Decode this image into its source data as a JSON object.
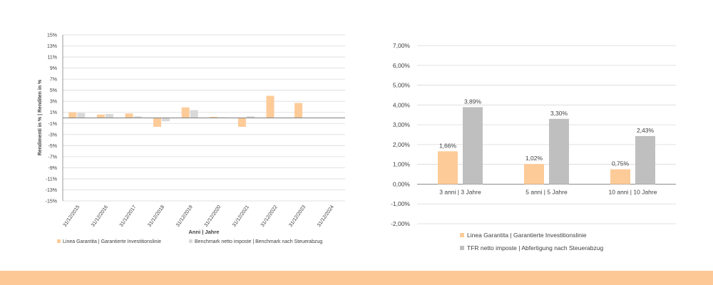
{
  "colors": {
    "series_orange": "#FDCB98",
    "series_light_gray": "#D9D9D9",
    "series_gray": "#BFBFBF",
    "gridline": "#D9D9D9",
    "axis": "#7F7F7F",
    "text": "#404040",
    "bottom_band": "#FDC896"
  },
  "chart_data": [
    {
      "type": "bar",
      "title": "",
      "xlabel": "Anni | Jahre",
      "ylabel": "Rendimenti in % | Renditen in %",
      "ylim": [
        -15,
        15
      ],
      "yticks": [
        "15%",
        "13%",
        "11%",
        "9%",
        "7%",
        "5%",
        "3%",
        "1%",
        "-1%",
        "-3%",
        "-5%",
        "-7%",
        "-9%",
        "-11%",
        "-13%",
        "-15%"
      ],
      "categories": [
        "31/12/2015",
        "31/12/2016",
        "31/12/2017",
        "31/12/2018",
        "31/12/2019",
        "31/12/2020",
        "31/12/2021",
        "31/12/2022",
        "31/12/2023",
        "31/12/2024"
      ],
      "series": [
        {
          "name": "Linea Garantita | Garantierte Investitionslinie",
          "color": "#FDCB98",
          "values": [
            1.0,
            0.6,
            0.8,
            -1.6,
            1.9,
            0.2,
            -1.6,
            4.0,
            2.7,
            0
          ]
        },
        {
          "name": "Benchmark netto imposte | Benchmark nach Steuerabzug",
          "color": "#D9D9D9",
          "values": [
            0.9,
            0.7,
            0.3,
            -0.6,
            1.4,
            0.1,
            0.3,
            0,
            0,
            0
          ]
        }
      ],
      "legend": "bottom"
    },
    {
      "type": "bar",
      "title": "",
      "xlabel": "",
      "ylabel": "",
      "ylim": [
        -2,
        7
      ],
      "yticks": [
        "7,00%",
        "6,00%",
        "5,00%",
        "4,00%",
        "3,00%",
        "2,00%",
        "1,00%",
        "0,00%",
        "-1,00%",
        "-2,00%"
      ],
      "categories": [
        "3 anni | 3 Jahre",
        "5 anni | 5 Jahre",
        "10 anni | 10 Jahre"
      ],
      "series": [
        {
          "name": "Linea Garantita | Garantierte Investitionslinie",
          "color": "#FDCB98",
          "values": [
            1.66,
            1.02,
            0.75
          ],
          "labels": [
            "1,66%",
            "1,02%",
            "0,75%"
          ]
        },
        {
          "name": "TFR netto imposte | Abfertigung nach Steuerabzug",
          "color": "#BFBFBF",
          "values": [
            3.89,
            3.3,
            2.43
          ],
          "labels": [
            "3,89%",
            "3,30%",
            "2,43%"
          ]
        }
      ],
      "legend": "bottom"
    }
  ]
}
